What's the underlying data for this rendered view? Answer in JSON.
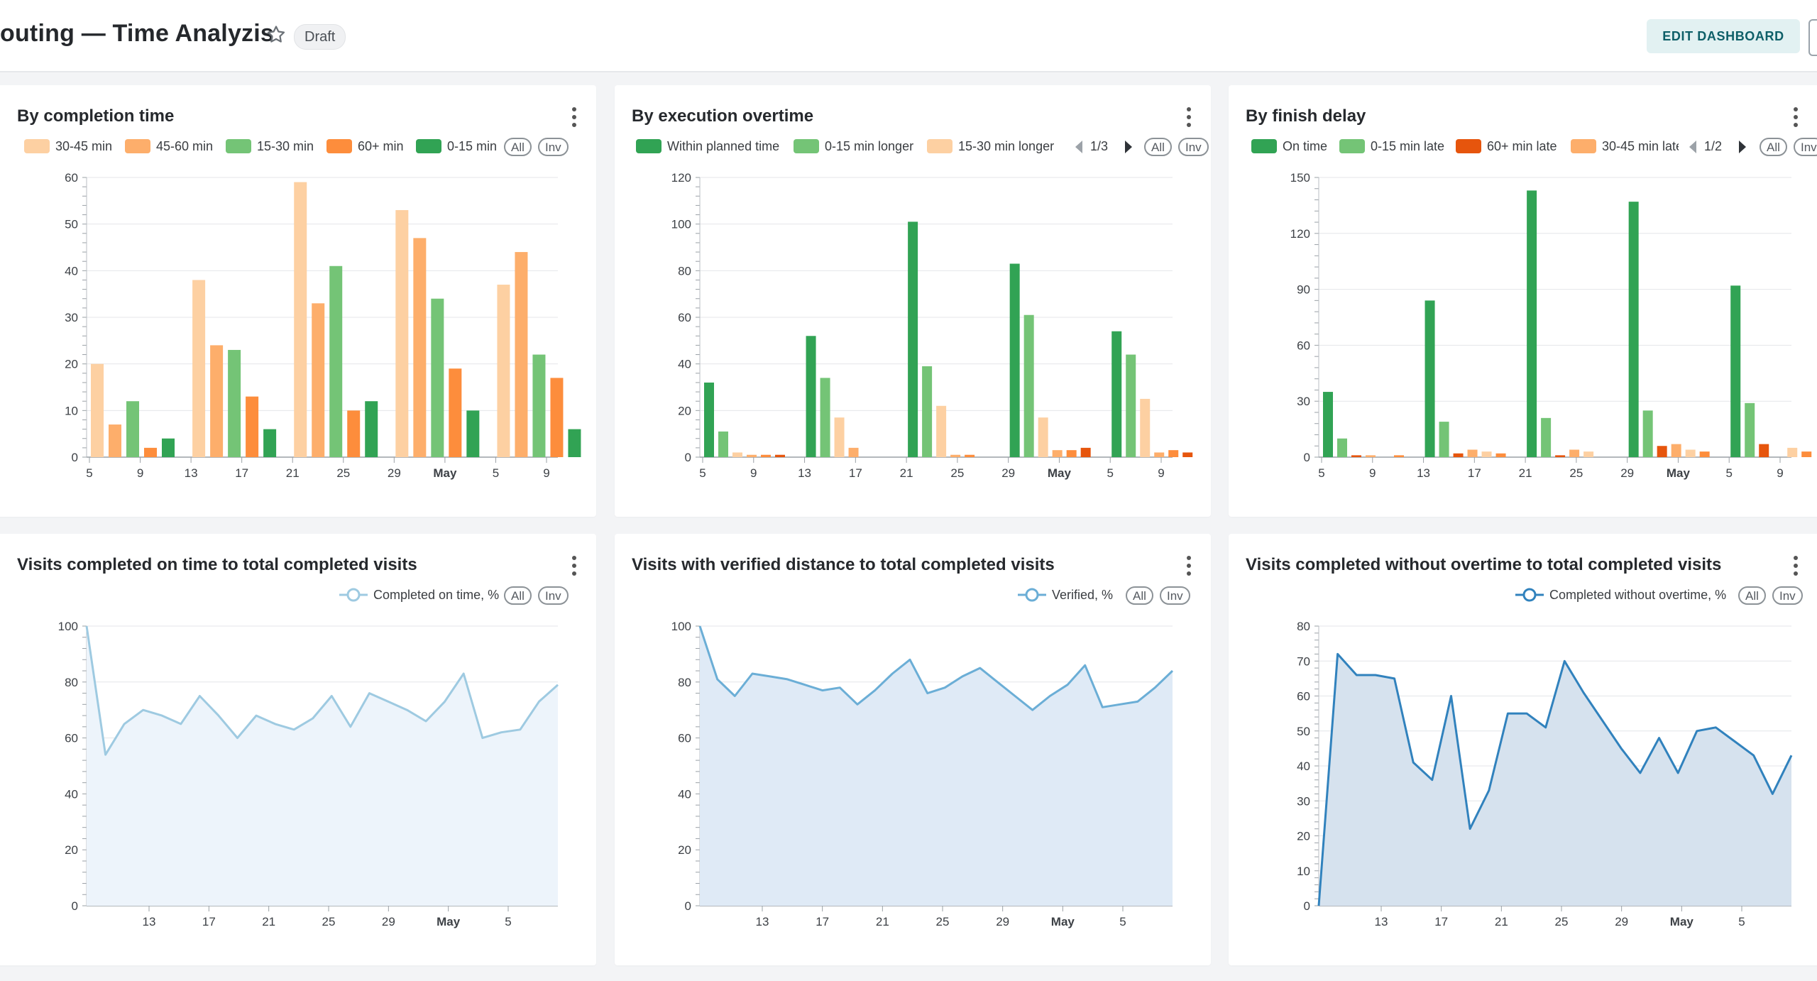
{
  "header": {
    "title": "outing — Time Analyzis",
    "badge": "Draft",
    "edit_label": "EDIT DASHBOARD"
  },
  "controls": {
    "all_label": "All",
    "inv_label": "Inv"
  },
  "panels": [
    {
      "title": "By completion time",
      "legend": [
        {
          "label": "30-45 min",
          "color": "#fdd0a2"
        },
        {
          "label": "45-60 min",
          "color": "#fdae6b"
        },
        {
          "label": "15-30 min",
          "color": "#74c476"
        },
        {
          "label": "60+ min",
          "color": "#fd8d3c"
        },
        {
          "label": "0-15 min",
          "color": "#31a354"
        }
      ],
      "pager": ""
    },
    {
      "title": "By execution overtime",
      "legend": [
        {
          "label": "Within planned time",
          "color": "#31a354"
        },
        {
          "label": "0-15 min longer",
          "color": "#74c476"
        },
        {
          "label": "15-30 min longer",
          "color": "#fdd0a2"
        }
      ],
      "pager": "1/3"
    },
    {
      "title": "By finish delay",
      "legend": [
        {
          "label": "On time",
          "color": "#31a354"
        },
        {
          "label": "0-15 min late",
          "color": "#74c476"
        },
        {
          "label": "60+ min late",
          "color": "#e6550d"
        },
        {
          "label": "30-45 min late",
          "color": "#fdae6b"
        }
      ],
      "pager": "1/2"
    },
    {
      "title": "Visits completed on time to total completed visits",
      "legend_label": "Completed on time, %"
    },
    {
      "title": "Visits with verified distance to total completed visits",
      "legend_label": "Verified, %"
    },
    {
      "title": "Visits completed without overtime to total completed visits",
      "legend_label": "Completed without overtime, %"
    }
  ],
  "chart_data": [
    {
      "type": "bar",
      "categories": [
        "5",
        "13",
        "21",
        "29",
        "5"
      ],
      "x_ticks": [
        "5",
        "9",
        "13",
        "17",
        "21",
        "25",
        "29",
        "May",
        "5",
        "9"
      ],
      "ylim": [
        0,
        60
      ],
      "y_ticks": [
        0,
        10,
        20,
        30,
        40,
        50,
        60
      ],
      "series": [
        {
          "name": "30-45 min",
          "color": "#fdd0a2",
          "values": [
            20,
            38,
            59,
            53,
            37
          ]
        },
        {
          "name": "45-60 min",
          "color": "#fdae6b",
          "values": [
            7,
            24,
            33,
            47,
            44
          ]
        },
        {
          "name": "15-30 min",
          "color": "#74c476",
          "values": [
            12,
            23,
            41,
            34,
            22
          ]
        },
        {
          "name": "60+ min",
          "color": "#fd8d3c",
          "values": [
            2,
            13,
            10,
            19,
            17
          ]
        },
        {
          "name": "0-15 min",
          "color": "#31a354",
          "values": [
            4,
            6,
            12,
            10,
            6
          ]
        }
      ]
    },
    {
      "type": "bar",
      "categories": [
        "5",
        "13",
        "21",
        "29",
        "5"
      ],
      "x_ticks": [
        "5",
        "9",
        "13",
        "17",
        "21",
        "25",
        "29",
        "May",
        "5",
        "9"
      ],
      "ylim": [
        0,
        120
      ],
      "y_ticks": [
        0,
        20,
        40,
        60,
        80,
        100,
        120
      ],
      "series": [
        {
          "name": "Within planned time",
          "color": "#31a354",
          "values": [
            32,
            52,
            101,
            83,
            54
          ]
        },
        {
          "name": "0-15 min longer",
          "color": "#74c476",
          "values": [
            11,
            34,
            39,
            61,
            44
          ]
        },
        {
          "name": "15-30 min longer",
          "color": "#fdd0a2",
          "values": [
            2,
            17,
            22,
            17,
            25
          ]
        },
        {
          "color": "#fdae6b",
          "values": [
            1,
            4,
            1,
            3,
            2
          ]
        },
        {
          "color": "#fd8d3c",
          "values": [
            1,
            0,
            1,
            3,
            3
          ]
        },
        {
          "color": "#e6550d",
          "values": [
            1,
            0,
            0,
            4,
            2
          ]
        }
      ]
    },
    {
      "type": "bar",
      "categories": [
        "5",
        "13",
        "21",
        "29",
        "5"
      ],
      "x_ticks": [
        "5",
        "9",
        "13",
        "17",
        "21",
        "25",
        "29",
        "May",
        "5",
        "9"
      ],
      "ylim": [
        0,
        150
      ],
      "y_ticks": [
        0,
        30,
        60,
        90,
        120,
        150
      ],
      "series": [
        {
          "name": "On time",
          "color": "#31a354",
          "values": [
            35,
            84,
            143,
            137,
            92
          ]
        },
        {
          "name": "0-15 min late",
          "color": "#74c476",
          "values": [
            10,
            19,
            21,
            25,
            29
          ]
        },
        {
          "name": "60+ min late",
          "color": "#e6550d",
          "values": [
            1,
            2,
            1,
            6,
            7
          ]
        },
        {
          "name": "30-45 min late",
          "color": "#fdae6b",
          "values": [
            1,
            4,
            4,
            7,
            0
          ]
        },
        {
          "color": "#fdd0a2",
          "values": [
            0,
            3,
            3,
            4,
            5
          ]
        },
        {
          "color": "#fd8d3c",
          "values": [
            1,
            2,
            0,
            3,
            3
          ]
        }
      ]
    },
    {
      "type": "area",
      "x_ticks": [
        "13",
        "17",
        "21",
        "25",
        "29",
        "May",
        "5"
      ],
      "ylim": [
        0,
        100
      ],
      "y_ticks": [
        0,
        20,
        40,
        60,
        80,
        100
      ],
      "line_color": "#9ecae1",
      "fill_color": "#edf4fb",
      "values": [
        100,
        54,
        65,
        70,
        68,
        65,
        75,
        68,
        60,
        68,
        65,
        63,
        67,
        75,
        64,
        76,
        73,
        70,
        66,
        73,
        83,
        60,
        62,
        63,
        73,
        79
      ]
    },
    {
      "type": "area",
      "x_ticks": [
        "13",
        "17",
        "21",
        "25",
        "29",
        "May",
        "5"
      ],
      "ylim": [
        0,
        100
      ],
      "y_ticks": [
        0,
        20,
        40,
        60,
        80,
        100
      ],
      "line_color": "#6baed6",
      "fill_color": "#dfeaf6",
      "values": [
        100,
        81,
        75,
        83,
        82,
        81,
        79,
        77,
        78,
        72,
        77,
        83,
        88,
        76,
        78,
        82,
        85,
        80,
        75,
        70,
        75,
        79,
        86,
        71,
        72,
        73,
        78,
        84
      ]
    },
    {
      "type": "area",
      "x_ticks": [
        "13",
        "17",
        "21",
        "25",
        "29",
        "May",
        "5"
      ],
      "ylim": [
        0,
        80
      ],
      "y_ticks": [
        0,
        10,
        20,
        30,
        40,
        50,
        60,
        70,
        80
      ],
      "line_color": "#3182bd",
      "fill_color": "#d6e2ee",
      "values": [
        0,
        72,
        66,
        66,
        65,
        41,
        36,
        60,
        22,
        33,
        55,
        55,
        51,
        70,
        61,
        53,
        45,
        38,
        48,
        38,
        50,
        51,
        47,
        43,
        32,
        43
      ]
    }
  ]
}
